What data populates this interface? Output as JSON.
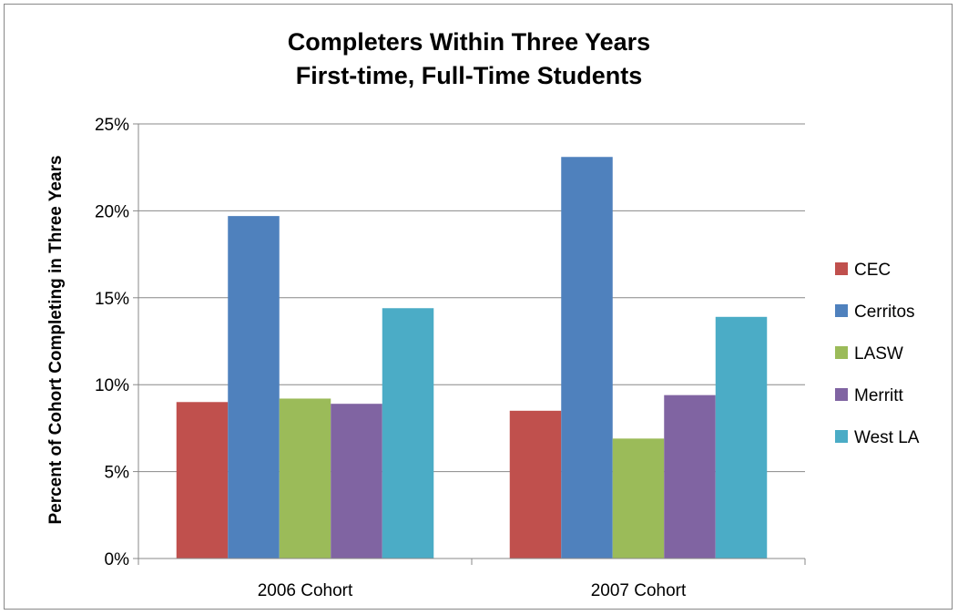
{
  "chart_data": {
    "type": "bar",
    "title_lines": [
      "Completers Within Three Years",
      "First-time, Full-Time Students"
    ],
    "ylabel": "Percent of Cohort Completing in Three Years",
    "xlabel": "",
    "categories": [
      "2006 Cohort",
      "2007 Cohort"
    ],
    "ylim": [
      0,
      25
    ],
    "yticks": [
      0,
      5,
      10,
      15,
      20,
      25
    ],
    "ytick_labels": [
      "0%",
      "5%",
      "10%",
      "15%",
      "20%",
      "25%"
    ],
    "grid": true,
    "legend_position": "right",
    "series": [
      {
        "name": "CEC",
        "color": "#C0504D",
        "values": [
          9.0,
          8.5
        ]
      },
      {
        "name": "Cerritos",
        "color": "#4F81BD",
        "values": [
          19.7,
          23.1
        ]
      },
      {
        "name": "LASW",
        "color": "#9BBB59",
        "values": [
          9.2,
          6.9
        ]
      },
      {
        "name": "Merritt",
        "color": "#8064A2",
        "values": [
          8.9,
          9.4
        ]
      },
      {
        "name": "West LA",
        "color": "#4BACC6",
        "values": [
          14.4,
          13.9
        ]
      }
    ]
  }
}
